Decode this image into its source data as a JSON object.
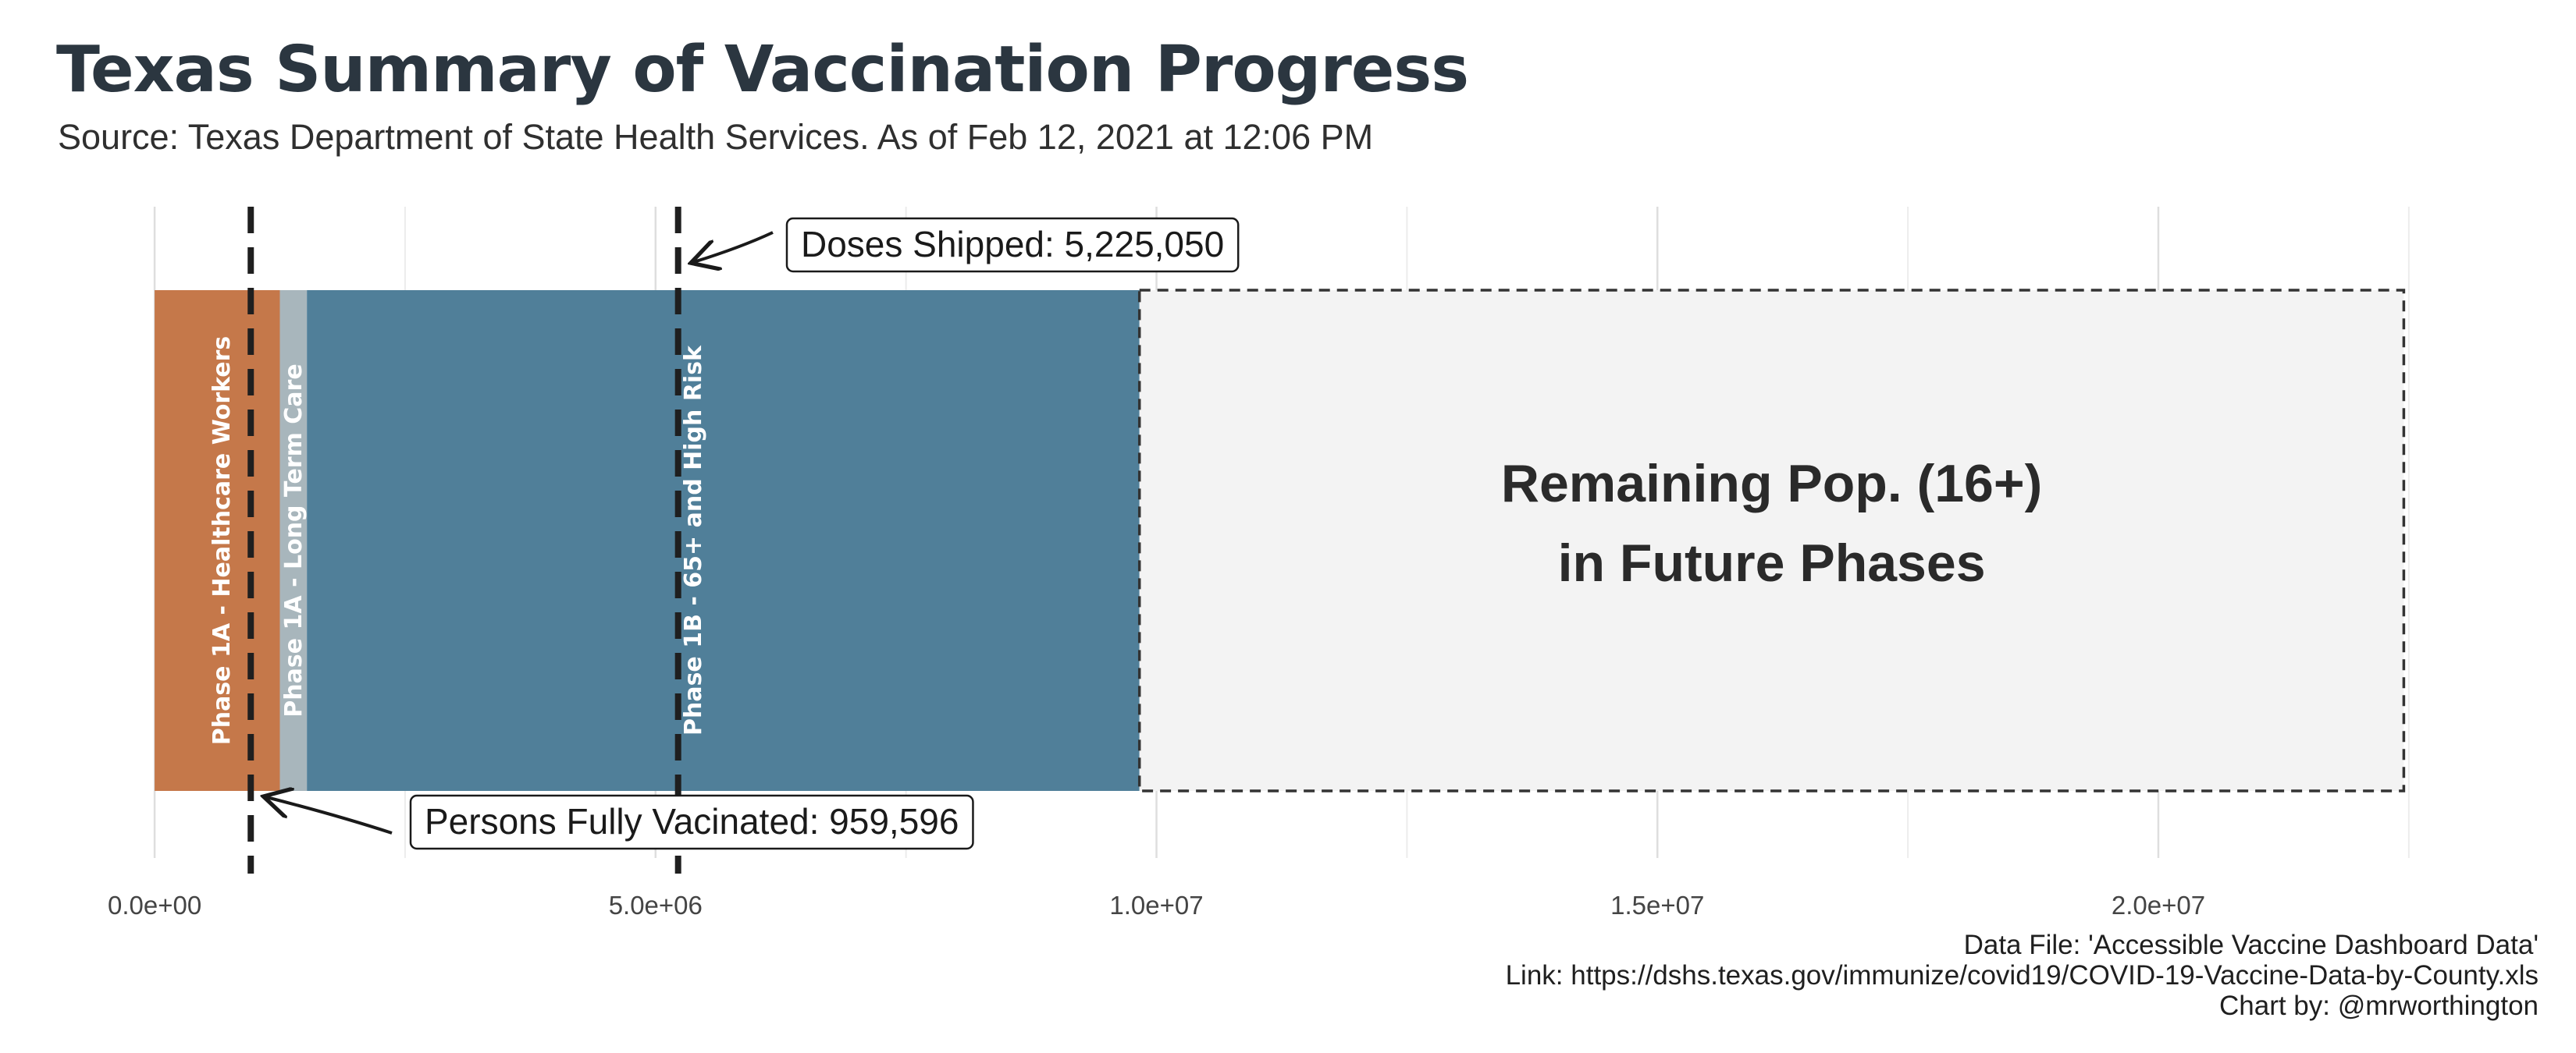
{
  "title": "Texas Summary of Vaccination Progress",
  "subtitle": "Source: Texas Department of State Health Services. As of Feb 12, 2021 at 12:06 PM",
  "caption": {
    "line1": "Data File: 'Accessible Vaccine Dashboard Data'",
    "line2": "Link: https://dshs.texas.gov/immunize/covid19/COVID-19-Vaccine-Data-by-County.xls",
    "line3": "Chart by: @mrworthington"
  },
  "chart_data": {
    "type": "bar",
    "orientation": "horizontal-stacked",
    "xlabel": "",
    "ylabel": "",
    "xlim": [
      -250000,
      23000000
    ],
    "grid": true,
    "x_ticks": [
      {
        "value": 0,
        "label": "0.0e+00"
      },
      {
        "value": 5000000,
        "label": "5.0e+06"
      },
      {
        "value": 10000000,
        "label": "1.0e+07"
      },
      {
        "value": 15000000,
        "label": "1.5e+07"
      },
      {
        "value": 20000000,
        "label": "2.0e+07"
      }
    ],
    "segments": [
      {
        "label": "Phase 1A - Healthcare Workers",
        "start": 0,
        "end": 1250000,
        "color": "#c5784a"
      },
      {
        "label": "Phase 1A - Long Term Care",
        "start": 1250000,
        "end": 1520000,
        "color": "#a8b6bc"
      },
      {
        "label": "Phase 1B - 65+ and High Risk",
        "start": 1520000,
        "end": 9830000,
        "color": "#507f99"
      },
      {
        "label": "Remaining Pop. (16+)\nin Future Phases",
        "start": 9830000,
        "end": 22450000,
        "color": "#f3f3f3",
        "dashed_border": true
      }
    ],
    "reference_lines": [
      {
        "label": "Doses Shipped: 5,225,050",
        "value": 5225050
      },
      {
        "label": "Persons Fully Vacinated: 959,596",
        "value": 959596
      }
    ]
  }
}
